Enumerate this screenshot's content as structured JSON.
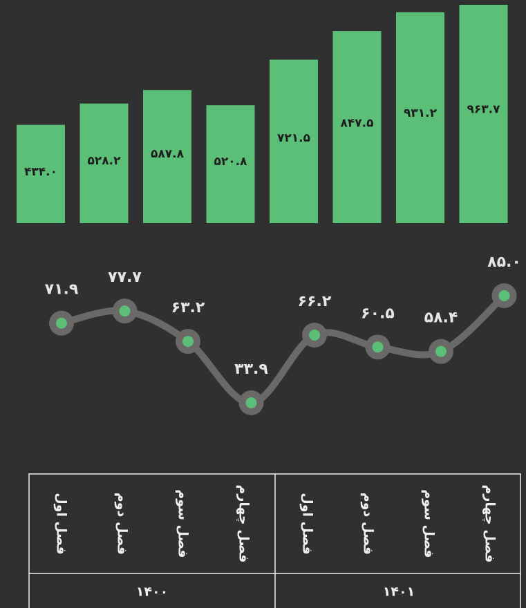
{
  "chart_data": [
    {
      "type": "bar",
      "color": "#5bbf78",
      "values": [
        434.0,
        528.2,
        587.8,
        520.8,
        721.5,
        847.5,
        931.2,
        963.7
      ],
      "value_labels": [
        "۴۳۴.۰",
        "۵۲۸.۲",
        "۵۸۷.۸",
        "۵۲۰.۸",
        "۷۲۱.۵",
        "۸۴۷.۵",
        "۹۳۱.۲",
        "۹۶۳.۷"
      ]
    },
    {
      "type": "line",
      "color": "#6b6868",
      "marker_color": "#5bbf78",
      "values": [
        71.9,
        77.7,
        63.2,
        33.9,
        66.2,
        60.5,
        58.4,
        85.0
      ],
      "value_labels": [
        "۷۱.۹",
        "۷۷.۷",
        "۶۳.۲",
        "۳۳.۹",
        "۶۶.۲",
        "۶۰.۵",
        "۵۸.۴",
        "۸۵.۰"
      ]
    }
  ],
  "table": {
    "columns": [
      "فصل اول",
      "فصل دوم",
      "فصل سوم",
      "فصل چهارم",
      "فصل اول",
      "فصل دوم",
      "فصل سوم",
      "فصل چهارم"
    ],
    "groups": [
      "۱۴۰۰",
      "۱۴۰۱"
    ]
  }
}
